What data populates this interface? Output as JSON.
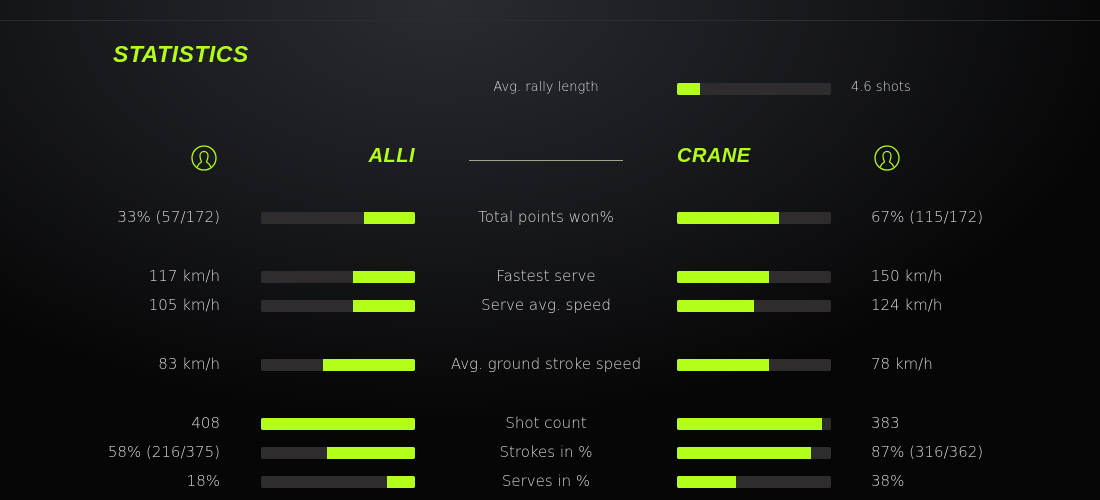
{
  "title": "STATISTICS",
  "accent_color": "#b3ff1a",
  "rally": {
    "label": "Avg. rally length",
    "value": "4.6 shots",
    "fill": 0.15
  },
  "players": {
    "left": {
      "name": "ALLI",
      "icon": "user-circle-icon"
    },
    "right": {
      "name": "CRANE",
      "icon": "user-circle-icon"
    }
  },
  "rows": [
    {
      "label": "Total points won%",
      "left": "33% (57/172)",
      "right": "67% (115/172)",
      "left_fill": 0.33,
      "right_fill": 0.66
    },
    {
      "label": "Fastest serve",
      "left": "117 km/h",
      "right": "150 km/h",
      "left_fill": 0.4,
      "right_fill": 0.6
    },
    {
      "label": "Serve avg. speed",
      "left": "105 km/h",
      "right": "124 km/h",
      "left_fill": 0.4,
      "right_fill": 0.5
    },
    {
      "label": "Avg. ground stroke speed",
      "left": "83 km/h",
      "right": "78 km/h",
      "left_fill": 0.6,
      "right_fill": 0.6
    },
    {
      "label": "Shot count",
      "left": "408",
      "right": "383",
      "left_fill": 1.0,
      "right_fill": 0.94
    },
    {
      "label": "Strokes in %",
      "left": "58% (216/375)",
      "right": "87% (316/362)",
      "left_fill": 0.57,
      "right_fill": 0.87
    },
    {
      "label": "Serves in %",
      "left": "18%",
      "right": "38%",
      "left_fill": 0.18,
      "right_fill": 0.38
    }
  ]
}
